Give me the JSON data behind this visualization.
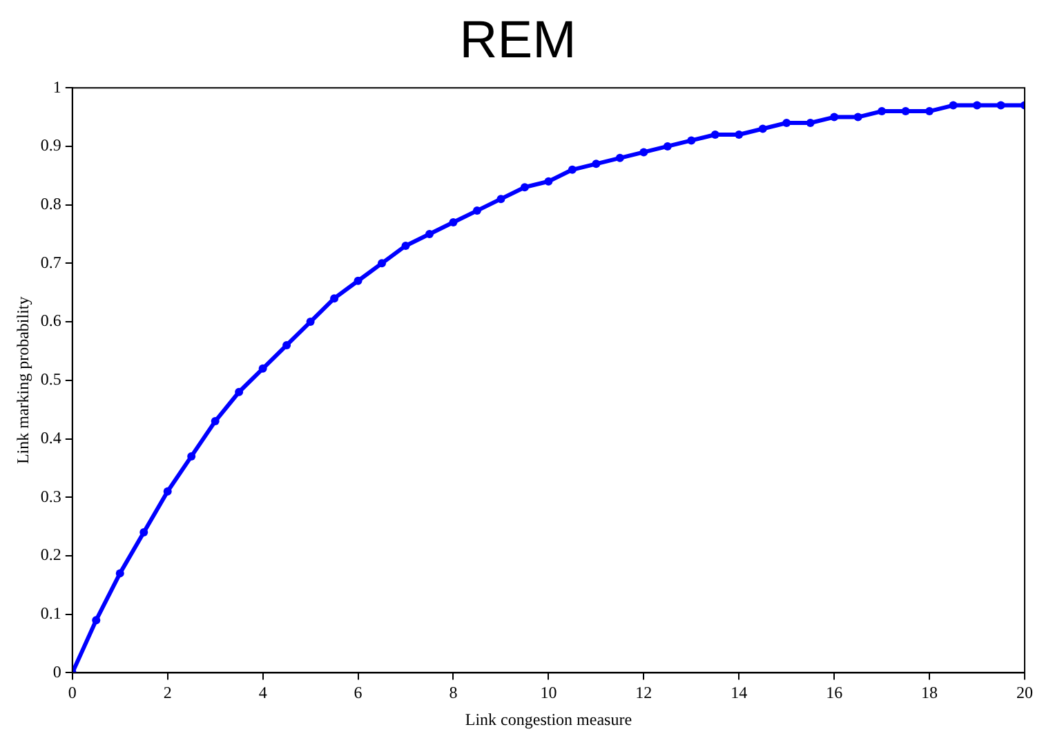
{
  "chart_data": {
    "type": "line",
    "title": "REM",
    "xlabel": "Link congestion measure",
    "ylabel": "Link marking probability",
    "x": [
      0,
      0.5,
      1,
      1.5,
      2,
      2.5,
      3,
      3.5,
      4,
      4.5,
      5,
      5.5,
      6,
      6.5,
      7,
      7.5,
      8,
      8.5,
      9,
      9.5,
      10,
      10.5,
      11,
      11.5,
      12,
      12.5,
      13,
      13.5,
      14,
      14.5,
      15,
      15.5,
      16,
      16.5,
      17,
      17.5,
      18,
      18.5,
      19,
      19.5,
      20
    ],
    "series": [
      {
        "color": "#0000ff",
        "values": [
          0,
          0.09,
          0.17,
          0.24,
          0.31,
          0.37,
          0.43,
          0.48,
          0.52,
          0.56,
          0.6,
          0.64,
          0.67,
          0.7,
          0.73,
          0.75,
          0.77,
          0.79,
          0.81,
          0.83,
          0.84,
          0.86,
          0.87,
          0.88,
          0.89,
          0.9,
          0.91,
          0.92,
          0.92,
          0.93,
          0.94,
          0.94,
          0.95,
          0.95,
          0.96,
          0.96,
          0.96,
          0.97,
          0.97,
          0.97,
          0.97
        ]
      }
    ],
    "xlim": [
      0,
      20
    ],
    "xticks": [
      0,
      2,
      4,
      6,
      8,
      10,
      12,
      14,
      16,
      18,
      20
    ],
    "ylim": [
      0,
      1
    ],
    "yticks": [
      0,
      0.1,
      0.2,
      0.3,
      0.4,
      0.5,
      0.6,
      0.7,
      0.8,
      0.9,
      1
    ],
    "grid": false,
    "legend": false,
    "marker": "circle",
    "line_style": "solid"
  }
}
